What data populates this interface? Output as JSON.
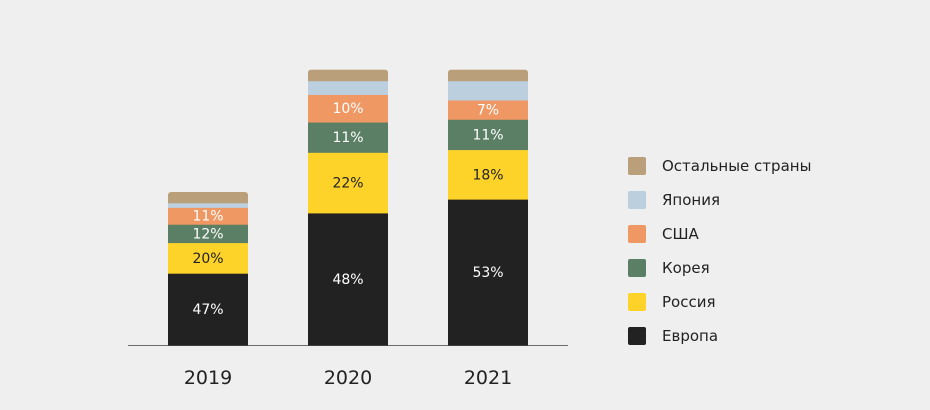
{
  "chart_data": {
    "type": "bar",
    "stacked": true,
    "categories": [
      "2019",
      "2020",
      "2021"
    ],
    "series": [
      {
        "name": "Европа",
        "color": "#222222",
        "values": [
          47,
          48,
          53
        ],
        "labels": [
          "47%",
          "48%",
          "53%"
        ]
      },
      {
        "name": "Россия",
        "color": "#fdd32a",
        "values": [
          20,
          22,
          18
        ],
        "labels": [
          "20%",
          "22%",
          "18%"
        ]
      },
      {
        "name": "Корея",
        "color": "#5a7f64",
        "values": [
          12,
          11,
          11
        ],
        "labels": [
          "12%",
          "11%",
          "11%"
        ]
      },
      {
        "name": "США",
        "color": "#ef9864",
        "values": [
          11,
          10,
          7
        ],
        "labels": [
          "11%",
          "10%",
          "7%"
        ]
      },
      {
        "name": "Япония",
        "color": "#bccfdf",
        "values": [
          3,
          5,
          7
        ],
        "labels": [
          "",
          "",
          ""
        ]
      },
      {
        "name": "Остальные страны",
        "color": "#b9a07a",
        "values": [
          7,
          4,
          4
        ],
        "labels": [
          "",
          "",
          ""
        ]
      }
    ],
    "totals": [
      100,
      100,
      100
    ],
    "relative_heights": [
      1.0,
      1.8,
      1.8
    ],
    "legend_position": "right",
    "grid": false
  },
  "legend": {
    "items": [
      {
        "label": "Остальные страны",
        "color": "#b9a07a"
      },
      {
        "label": "Япония",
        "color": "#bccfdf"
      },
      {
        "label": "США",
        "color": "#ef9864"
      },
      {
        "label": "Корея",
        "color": "#5a7f64"
      },
      {
        "label": "Россия",
        "color": "#fdd32a"
      },
      {
        "label": "Европа",
        "color": "#222222"
      }
    ]
  }
}
